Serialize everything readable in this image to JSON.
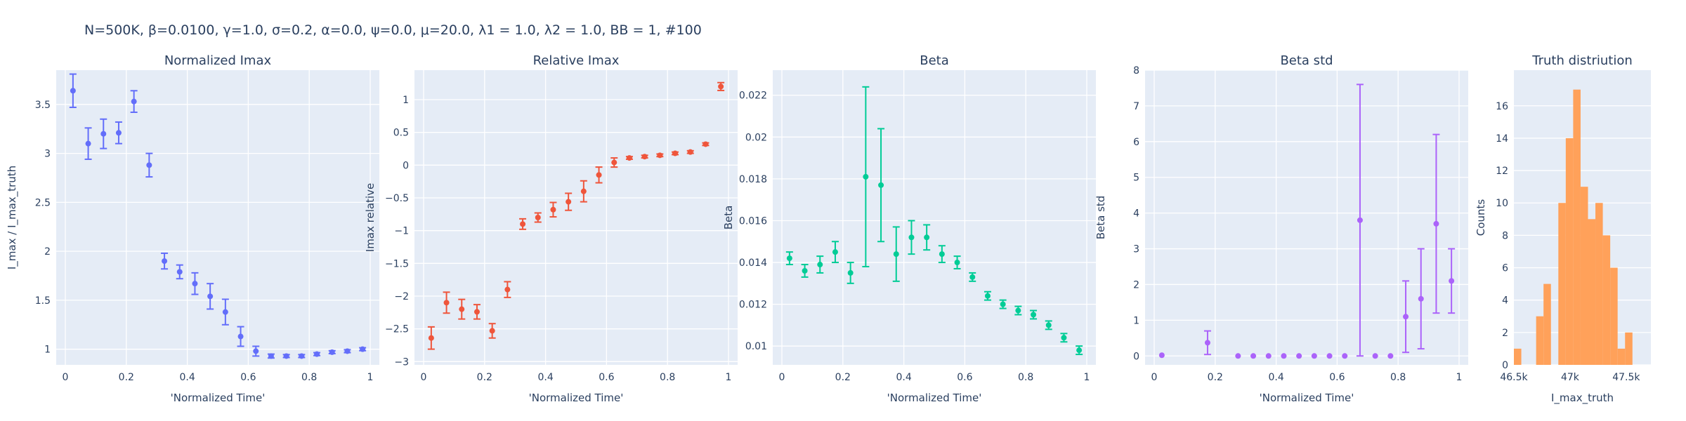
{
  "figure_title": "N=500K, β=0.0100, γ=1.0, σ=0.2,  α=0.0, ψ=0.0, μ=20.0, λ1 = 1.0, λ2 = 1.0, BB = 1, #100",
  "colors": {
    "plot_bg": "#e5ecf6",
    "grid": "#ffffff",
    "text": "#2a3f5f"
  },
  "chart_data": [
    {
      "type": "scatter",
      "title": "Normalized Imax",
      "xlabel": "'Normalized Time'",
      "ylabel": "I_max / I_max_truth",
      "xlim": [
        -0.03,
        1.03
      ],
      "ylim": [
        0.84,
        3.85
      ],
      "xticks": [
        0,
        0.2,
        0.4,
        0.6,
        0.8,
        1
      ],
      "xtick_labels": [
        "0",
        "0.2",
        "0.4",
        "0.6",
        "0.8",
        "1"
      ],
      "yticks": [
        1,
        1.5,
        2,
        2.5,
        3,
        3.5
      ],
      "ytick_labels": [
        "1",
        "1.5",
        "2",
        "2.5",
        "3",
        "3.5"
      ],
      "color": "#636efa",
      "series": [
        {
          "x": [
            0.025,
            0.075,
            0.125,
            0.175,
            0.225,
            0.275,
            0.325,
            0.375,
            0.425,
            0.475,
            0.525,
            0.575,
            0.625,
            0.675,
            0.725,
            0.775,
            0.825,
            0.875,
            0.925,
            0.975
          ],
          "y": [
            3.64,
            3.1,
            3.2,
            3.21,
            3.53,
            2.88,
            1.9,
            1.79,
            1.67,
            1.54,
            1.38,
            1.13,
            0.98,
            0.93,
            0.93,
            0.93,
            0.95,
            0.97,
            0.98,
            1.0
          ],
          "err": [
            0.17,
            0.16,
            0.15,
            0.11,
            0.11,
            0.12,
            0.08,
            0.07,
            0.11,
            0.13,
            0.13,
            0.1,
            0.05,
            0.02,
            0.015,
            0.015,
            0.015,
            0.015,
            0.015,
            0.015
          ]
        }
      ]
    },
    {
      "type": "scatter",
      "title": "Relative Imax",
      "xlabel": "'Normalized Time'",
      "ylabel": "Imax relative",
      "xlim": [
        -0.03,
        1.03
      ],
      "ylim": [
        -3.05,
        1.45
      ],
      "xticks": [
        0,
        0.2,
        0.4,
        0.6,
        0.8,
        1
      ],
      "xtick_labels": [
        "0",
        "0.2",
        "0.4",
        "0.6",
        "0.8",
        "1"
      ],
      "yticks": [
        -3,
        -2.5,
        -2,
        -1.5,
        -1,
        -0.5,
        0,
        0.5,
        1
      ],
      "ytick_labels": [
        "−3",
        "−2.5",
        "−2",
        "−1.5",
        "−1",
        "−0.5",
        "0",
        "0.5",
        "1"
      ],
      "color": "#ef553b",
      "series": [
        {
          "x": [
            0.025,
            0.075,
            0.125,
            0.175,
            0.225,
            0.275,
            0.325,
            0.375,
            0.425,
            0.475,
            0.525,
            0.575,
            0.625,
            0.675,
            0.725,
            0.775,
            0.825,
            0.875,
            0.925,
            0.975
          ],
          "y": [
            -2.64,
            -2.1,
            -2.2,
            -2.24,
            -2.53,
            -1.9,
            -0.9,
            -0.8,
            -0.68,
            -0.56,
            -0.4,
            -0.15,
            0.04,
            0.11,
            0.13,
            0.15,
            0.18,
            0.2,
            0.32,
            1.2
          ],
          "err": [
            0.17,
            0.16,
            0.15,
            0.11,
            0.11,
            0.12,
            0.08,
            0.07,
            0.11,
            0.13,
            0.16,
            0.12,
            0.07,
            0.02,
            0.02,
            0.02,
            0.02,
            0.02,
            0.02,
            0.06
          ]
        }
      ]
    },
    {
      "type": "scatter",
      "title": "Beta",
      "xlabel": "'Normalized Time'",
      "ylabel": "Beta",
      "xlim": [
        -0.03,
        1.03
      ],
      "ylim": [
        0.0091,
        0.0232
      ],
      "xticks": [
        0,
        0.2,
        0.4,
        0.6,
        0.8,
        1
      ],
      "xtick_labels": [
        "0",
        "0.2",
        "0.4",
        "0.6",
        "0.8",
        "1"
      ],
      "yticks": [
        0.01,
        0.012,
        0.014,
        0.016,
        0.018,
        0.02,
        0.022
      ],
      "ytick_labels": [
        "0.01",
        "0.012",
        "0.014",
        "0.016",
        "0.018",
        "0.02",
        "0.022"
      ],
      "color": "#00cc96",
      "series": [
        {
          "x": [
            0.025,
            0.075,
            0.125,
            0.175,
            0.225,
            0.275,
            0.325,
            0.375,
            0.425,
            0.475,
            0.525,
            0.575,
            0.625,
            0.675,
            0.725,
            0.775,
            0.825,
            0.875,
            0.925,
            0.975
          ],
          "y": [
            0.0142,
            0.0136,
            0.0139,
            0.0145,
            0.0135,
            0.0181,
            0.0177,
            0.0144,
            0.0152,
            0.0152,
            0.0144,
            0.014,
            0.0133,
            0.0124,
            0.012,
            0.0117,
            0.0115,
            0.011,
            0.0104,
            0.0098
          ],
          "err": [
            0.0003,
            0.0003,
            0.0004,
            0.0005,
            0.0005,
            0.0043,
            0.0027,
            0.0013,
            0.0008,
            0.0006,
            0.0004,
            0.0003,
            0.0002,
            0.0002,
            0.0002,
            0.0002,
            0.0002,
            0.0002,
            0.0002,
            0.0002
          ]
        }
      ]
    },
    {
      "type": "scatter",
      "title": "Beta std",
      "xlabel": "'Normalized Time'",
      "ylabel": "Beta std",
      "xlim": [
        -0.03,
        1.03
      ],
      "ylim": [
        -0.25,
        8.0
      ],
      "xticks": [
        0,
        0.2,
        0.4,
        0.6,
        0.8,
        1
      ],
      "xtick_labels": [
        "0",
        "0.2",
        "0.4",
        "0.6",
        "0.8",
        "1"
      ],
      "yticks": [
        0,
        1,
        2,
        3,
        4,
        5,
        6,
        7,
        8
      ],
      "ytick_labels": [
        "0",
        "1",
        "2",
        "3",
        "4",
        "5",
        "6",
        "7",
        "8"
      ],
      "color": "#ab63fa",
      "series": [
        {
          "x": [
            0.025,
            0.175,
            0.275,
            0.325,
            0.375,
            0.425,
            0.475,
            0.525,
            0.575,
            0.625,
            0.675,
            0.725,
            0.775,
            0.825,
            0.875,
            0.925,
            0.975
          ],
          "y": [
            0.02,
            0.37,
            0.0,
            0.0,
            0.0,
            0.0,
            0.0,
            0.0,
            0.0,
            0.0,
            3.8,
            0.0,
            0.0,
            1.1,
            1.6,
            3.7,
            2.1
          ],
          "err": [
            0.0,
            0.33,
            0.0,
            0.0,
            0.0,
            0.0,
            0.0,
            0.0,
            0.0,
            0.0,
            3.8,
            0.0,
            0.0,
            1.0,
            1.4,
            2.5,
            0.9
          ]
        }
      ]
    },
    {
      "type": "bar",
      "title": "Truth distriution",
      "xlabel": "I_max_truth",
      "ylabel": "Counts",
      "xlim": [
        46500,
        47720
      ],
      "ylim": [
        0,
        18.2
      ],
      "xticks": [
        46500,
        47000,
        47500
      ],
      "xtick_labels": [
        "46.5k",
        "47k",
        "47.5k"
      ],
      "yticks": [
        0,
        2,
        4,
        6,
        8,
        10,
        12,
        14,
        16
      ],
      "ytick_labels": [
        "0",
        "2",
        "4",
        "6",
        "8",
        "10",
        "12",
        "14",
        "16"
      ],
      "color": "#ffa15a",
      "bin_edges": [
        46500,
        46566,
        46632,
        46698,
        46764,
        46830,
        46896,
        46962,
        47028,
        47094,
        47160,
        47226,
        47292,
        47358,
        47424,
        47490,
        47556,
        47622,
        47688
      ],
      "values": [
        1,
        0,
        0,
        3,
        5,
        0,
        10,
        14,
        17,
        11,
        9,
        10,
        8,
        6,
        1,
        2,
        0,
        0
      ]
    }
  ]
}
